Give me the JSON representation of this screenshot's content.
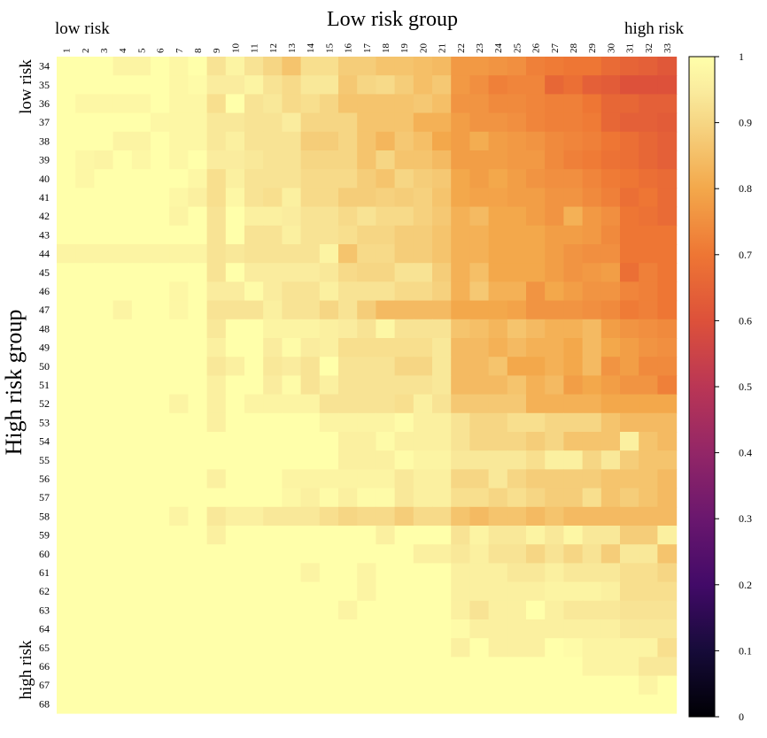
{
  "chart_data": {
    "type": "heatmap",
    "title": "Low risk group",
    "ylabel": "High risk group",
    "top_left_label": "low risk",
    "top_right_label": "high risk",
    "left_top_label": "low risk",
    "left_bottom_label": "high risk",
    "x_categories": [
      "1",
      "2",
      "3",
      "4",
      "5",
      "6",
      "7",
      "8",
      "9",
      "10",
      "11",
      "12",
      "13",
      "14",
      "15",
      "16",
      "17",
      "18",
      "19",
      "20",
      "21",
      "22",
      "23",
      "24",
      "25",
      "26",
      "27",
      "28",
      "29",
      "30",
      "31",
      "32",
      "33"
    ],
    "y_categories": [
      "34",
      "35",
      "36",
      "37",
      "38",
      "39",
      "40",
      "41",
      "42",
      "43",
      "44",
      "45",
      "46",
      "47",
      "48",
      "49",
      "50",
      "51",
      "52",
      "53",
      "54",
      "55",
      "56",
      "57",
      "58",
      "59",
      "60",
      "61",
      "62",
      "63",
      "64",
      "65",
      "66",
      "67",
      "68"
    ],
    "colorbar": {
      "min": 0,
      "max": 1,
      "ticks": [
        "0",
        "0.1",
        "0.2",
        "0.3",
        "0.4",
        "0.5",
        "0.6",
        "0.7",
        "0.8",
        "0.9",
        "1"
      ]
    },
    "colormap": "inferno",
    "values": [
      [
        1.0,
        1.0,
        1.0,
        0.97,
        0.97,
        1.0,
        0.98,
        1.0,
        0.93,
        0.97,
        0.93,
        0.9,
        0.86,
        0.92,
        0.92,
        0.88,
        0.88,
        0.86,
        0.86,
        0.85,
        0.84,
        0.77,
        0.77,
        0.76,
        0.75,
        0.72,
        0.71,
        0.7,
        0.7,
        0.67,
        0.65,
        0.64,
        0.62
      ],
      [
        1.0,
        1.0,
        1.0,
        1.0,
        1.0,
        1.0,
        0.98,
        0.99,
        0.95,
        0.95,
        0.97,
        0.93,
        0.91,
        0.94,
        0.94,
        0.87,
        0.9,
        0.91,
        0.88,
        0.85,
        0.87,
        0.77,
        0.75,
        0.72,
        0.73,
        0.73,
        0.66,
        0.68,
        0.64,
        0.63,
        0.6,
        0.6,
        0.6
      ],
      [
        1.0,
        0.98,
        0.98,
        0.98,
        0.98,
        1.0,
        0.98,
        0.98,
        0.92,
        1.0,
        0.93,
        0.94,
        0.91,
        0.92,
        0.9,
        0.86,
        0.86,
        0.86,
        0.86,
        0.87,
        0.85,
        0.76,
        0.76,
        0.74,
        0.74,
        0.73,
        0.72,
        0.72,
        0.7,
        0.66,
        0.66,
        0.64,
        0.64
      ],
      [
        1.0,
        1.0,
        1.0,
        1.0,
        1.0,
        0.98,
        0.98,
        0.98,
        0.94,
        0.94,
        0.93,
        0.93,
        0.95,
        0.9,
        0.9,
        0.9,
        0.86,
        0.86,
        0.86,
        0.82,
        0.82,
        0.78,
        0.76,
        0.76,
        0.75,
        0.73,
        0.72,
        0.72,
        0.71,
        0.66,
        0.64,
        0.64,
        0.63
      ],
      [
        1.0,
        1.0,
        1.0,
        0.97,
        0.97,
        1.0,
        0.98,
        0.98,
        0.94,
        0.96,
        0.93,
        0.93,
        0.93,
        0.88,
        0.88,
        0.9,
        0.86,
        0.83,
        0.87,
        0.85,
        0.8,
        0.78,
        0.81,
        0.78,
        0.77,
        0.76,
        0.74,
        0.73,
        0.72,
        0.7,
        0.68,
        0.66,
        0.64
      ],
      [
        1.0,
        0.98,
        0.97,
        1.0,
        0.98,
        1.0,
        0.98,
        1.0,
        0.95,
        0.95,
        0.94,
        0.93,
        0.93,
        0.9,
        0.9,
        0.9,
        0.86,
        0.9,
        0.86,
        0.86,
        0.84,
        0.78,
        0.78,
        0.78,
        0.77,
        0.77,
        0.74,
        0.72,
        0.71,
        0.69,
        0.68,
        0.66,
        0.64
      ],
      [
        1.0,
        0.98,
        1.0,
        1.0,
        1.0,
        1.0,
        1.0,
        0.98,
        0.92,
        0.96,
        0.93,
        0.93,
        0.93,
        0.91,
        0.91,
        0.91,
        0.88,
        0.86,
        0.9,
        0.88,
        0.87,
        0.8,
        0.78,
        0.8,
        0.78,
        0.76,
        0.75,
        0.75,
        0.73,
        0.71,
        0.7,
        0.68,
        0.67
      ],
      [
        1.0,
        1.0,
        1.0,
        1.0,
        1.0,
        1.0,
        0.98,
        0.96,
        0.92,
        0.98,
        0.93,
        0.92,
        0.96,
        0.91,
        0.91,
        0.88,
        0.88,
        0.89,
        0.88,
        0.89,
        0.86,
        0.8,
        0.79,
        0.79,
        0.78,
        0.78,
        0.76,
        0.76,
        0.74,
        0.72,
        0.68,
        0.7,
        0.67
      ],
      [
        1.0,
        1.0,
        1.0,
        1.0,
        1.0,
        1.0,
        0.97,
        1.0,
        0.93,
        1.0,
        0.96,
        0.96,
        0.95,
        0.93,
        0.93,
        0.91,
        0.93,
        0.91,
        0.91,
        0.89,
        0.87,
        0.82,
        0.84,
        0.8,
        0.8,
        0.78,
        0.76,
        0.82,
        0.77,
        0.75,
        0.7,
        0.69,
        0.67
      ],
      [
        1.0,
        1.0,
        1.0,
        1.0,
        1.0,
        1.0,
        1.0,
        1.0,
        0.93,
        1.0,
        0.93,
        0.93,
        0.96,
        0.93,
        0.93,
        0.92,
        0.9,
        0.9,
        0.88,
        0.88,
        0.86,
        0.82,
        0.82,
        0.8,
        0.8,
        0.8,
        0.78,
        0.78,
        0.77,
        0.74,
        0.7,
        0.7,
        0.7
      ],
      [
        0.97,
        0.97,
        0.97,
        0.97,
        0.97,
        0.97,
        0.97,
        0.97,
        0.93,
        0.94,
        0.93,
        0.93,
        0.93,
        0.93,
        0.97,
        0.86,
        0.91,
        0.91,
        0.88,
        0.88,
        0.86,
        0.82,
        0.82,
        0.8,
        0.8,
        0.8,
        0.78,
        0.76,
        0.75,
        0.75,
        0.7,
        0.7,
        0.7
      ],
      [
        1.0,
        1.0,
        1.0,
        1.0,
        1.0,
        1.0,
        1.0,
        1.0,
        0.93,
        1.0,
        0.95,
        0.95,
        0.95,
        0.95,
        0.94,
        0.91,
        0.9,
        0.9,
        0.93,
        0.93,
        0.88,
        0.82,
        0.85,
        0.8,
        0.8,
        0.8,
        0.78,
        0.76,
        0.77,
        0.78,
        0.68,
        0.72,
        0.7
      ],
      [
        1.0,
        1.0,
        1.0,
        1.0,
        1.0,
        1.0,
        0.98,
        1.0,
        0.95,
        0.95,
        0.99,
        0.95,
        0.93,
        0.93,
        0.96,
        0.93,
        0.93,
        0.93,
        0.91,
        0.91,
        0.89,
        0.82,
        0.87,
        0.82,
        0.82,
        0.76,
        0.8,
        0.78,
        0.76,
        0.76,
        0.73,
        0.72,
        0.7
      ],
      [
        1.0,
        1.0,
        1.0,
        0.97,
        1.0,
        1.0,
        0.98,
        1.0,
        0.93,
        0.93,
        0.93,
        0.96,
        0.93,
        0.93,
        0.9,
        0.93,
        0.88,
        0.84,
        0.84,
        0.84,
        0.84,
        0.8,
        0.8,
        0.8,
        0.79,
        0.76,
        0.76,
        0.76,
        0.75,
        0.74,
        0.71,
        0.72,
        0.7
      ],
      [
        1.0,
        1.0,
        1.0,
        1.0,
        1.0,
        1.0,
        1.0,
        1.0,
        0.94,
        1.0,
        1.0,
        0.97,
        0.97,
        0.97,
        0.96,
        0.95,
        0.93,
        0.98,
        0.93,
        0.93,
        0.93,
        0.86,
        0.85,
        0.83,
        0.86,
        0.84,
        0.82,
        0.82,
        0.84,
        0.78,
        0.76,
        0.75,
        0.74
      ],
      [
        1.0,
        1.0,
        1.0,
        1.0,
        1.0,
        1.0,
        1.0,
        1.0,
        0.96,
        1.0,
        1.0,
        0.95,
        0.99,
        0.95,
        0.96,
        0.92,
        0.92,
        0.92,
        0.92,
        0.92,
        0.94,
        0.84,
        0.84,
        0.82,
        0.84,
        0.82,
        0.82,
        0.8,
        0.84,
        0.8,
        0.78,
        0.76,
        0.75
      ],
      [
        1.0,
        1.0,
        1.0,
        1.0,
        1.0,
        1.0,
        1.0,
        1.0,
        0.94,
        0.96,
        1.0,
        0.94,
        0.95,
        0.93,
        1.0,
        0.93,
        0.93,
        0.93,
        0.9,
        0.9,
        0.94,
        0.84,
        0.84,
        0.86,
        0.8,
        0.8,
        0.82,
        0.8,
        0.84,
        0.76,
        0.78,
        0.74,
        0.74
      ],
      [
        1.0,
        1.0,
        1.0,
        1.0,
        1.0,
        1.0,
        1.0,
        1.0,
        0.96,
        1.0,
        1.0,
        0.95,
        0.99,
        0.93,
        0.96,
        0.93,
        0.93,
        0.93,
        0.93,
        0.93,
        0.94,
        0.84,
        0.84,
        0.84,
        0.86,
        0.82,
        0.84,
        0.78,
        0.8,
        0.78,
        0.76,
        0.76,
        0.72
      ],
      [
        1.0,
        1.0,
        1.0,
        1.0,
        1.0,
        1.0,
        0.97,
        1.0,
        0.96,
        1.0,
        0.97,
        0.97,
        0.97,
        0.97,
        0.93,
        0.93,
        0.93,
        0.93,
        0.92,
        0.96,
        0.93,
        0.87,
        0.87,
        0.87,
        0.87,
        0.82,
        0.82,
        0.82,
        0.82,
        0.8,
        0.8,
        0.8,
        0.8
      ],
      [
        1.0,
        1.0,
        1.0,
        1.0,
        1.0,
        1.0,
        1.0,
        1.0,
        0.96,
        1.0,
        1.0,
        1.0,
        1.0,
        1.0,
        0.97,
        0.97,
        0.97,
        0.97,
        0.99,
        0.96,
        0.96,
        0.93,
        0.9,
        0.9,
        0.92,
        0.92,
        0.9,
        0.9,
        0.9,
        0.86,
        0.84,
        0.84,
        0.84
      ],
      [
        1.0,
        1.0,
        1.0,
        1.0,
        1.0,
        1.0,
        1.0,
        1.0,
        1.0,
        1.0,
        1.0,
        1.0,
        1.0,
        1.0,
        1.0,
        0.96,
        0.96,
        0.99,
        0.96,
        0.96,
        0.96,
        0.93,
        0.9,
        0.9,
        0.9,
        0.88,
        0.9,
        0.86,
        0.86,
        0.86,
        0.96,
        0.86,
        0.84
      ],
      [
        1.0,
        1.0,
        1.0,
        1.0,
        1.0,
        1.0,
        1.0,
        1.0,
        1.0,
        1.0,
        1.0,
        1.0,
        1.0,
        1.0,
        1.0,
        0.96,
        0.96,
        0.96,
        0.99,
        0.97,
        0.97,
        0.94,
        0.94,
        0.94,
        0.94,
        0.92,
        0.96,
        0.96,
        0.9,
        0.94,
        0.88,
        0.86,
        0.86
      ],
      [
        1.0,
        1.0,
        1.0,
        1.0,
        1.0,
        1.0,
        1.0,
        1.0,
        0.96,
        1.0,
        1.0,
        1.0,
        0.97,
        0.97,
        0.97,
        0.97,
        0.97,
        0.97,
        0.94,
        0.96,
        0.96,
        0.9,
        0.9,
        0.94,
        0.9,
        0.88,
        0.88,
        0.88,
        0.88,
        0.86,
        0.86,
        0.86,
        0.84
      ],
      [
        1.0,
        1.0,
        1.0,
        1.0,
        1.0,
        1.0,
        1.0,
        1.0,
        1.0,
        1.0,
        1.0,
        1.0,
        0.98,
        0.96,
        0.99,
        0.96,
        0.99,
        0.99,
        0.94,
        0.96,
        0.96,
        0.92,
        0.92,
        0.9,
        0.92,
        0.9,
        0.88,
        0.88,
        0.92,
        0.86,
        0.88,
        0.86,
        0.84
      ],
      [
        1.0,
        1.0,
        1.0,
        1.0,
        1.0,
        1.0,
        0.97,
        1.0,
        0.94,
        0.96,
        0.96,
        0.94,
        0.94,
        0.94,
        0.92,
        0.9,
        0.91,
        0.91,
        0.88,
        0.91,
        0.91,
        0.86,
        0.84,
        0.86,
        0.86,
        0.84,
        0.86,
        0.84,
        0.84,
        0.84,
        0.84,
        0.84,
        0.84
      ],
      [
        1.0,
        1.0,
        1.0,
        1.0,
        1.0,
        1.0,
        1.0,
        1.0,
        0.96,
        1.0,
        1.0,
        1.0,
        1.0,
        1.0,
        1.0,
        1.0,
        1.0,
        0.96,
        1.0,
        1.0,
        1.0,
        0.93,
        0.97,
        0.94,
        0.94,
        0.97,
        0.94,
        0.98,
        0.94,
        0.94,
        0.88,
        0.88,
        0.96
      ],
      [
        1.0,
        1.0,
        1.0,
        1.0,
        1.0,
        1.0,
        1.0,
        1.0,
        1.0,
        1.0,
        1.0,
        1.0,
        1.0,
        1.0,
        1.0,
        1.0,
        1.0,
        1.0,
        1.0,
        0.96,
        0.96,
        0.94,
        0.96,
        0.93,
        0.93,
        0.9,
        0.93,
        0.9,
        0.93,
        0.88,
        0.94,
        0.94,
        0.86
      ],
      [
        1.0,
        1.0,
        1.0,
        1.0,
        1.0,
        1.0,
        1.0,
        1.0,
        1.0,
        1.0,
        1.0,
        1.0,
        1.0,
        0.97,
        1.0,
        1.0,
        0.97,
        1.0,
        1.0,
        1.0,
        1.0,
        0.96,
        0.96,
        0.96,
        0.94,
        0.94,
        0.96,
        0.94,
        0.94,
        0.94,
        0.92,
        0.92,
        0.9
      ],
      [
        1.0,
        1.0,
        1.0,
        1.0,
        1.0,
        1.0,
        1.0,
        1.0,
        1.0,
        1.0,
        1.0,
        1.0,
        1.0,
        1.0,
        1.0,
        1.0,
        0.97,
        1.0,
        1.0,
        1.0,
        1.0,
        0.96,
        0.96,
        0.96,
        0.96,
        0.96,
        0.97,
        0.97,
        0.97,
        0.96,
        0.92,
        0.92,
        0.92
      ],
      [
        1.0,
        1.0,
        1.0,
        1.0,
        1.0,
        1.0,
        1.0,
        1.0,
        1.0,
        1.0,
        1.0,
        1.0,
        1.0,
        1.0,
        1.0,
        0.97,
        1.0,
        1.0,
        1.0,
        1.0,
        1.0,
        0.96,
        0.93,
        0.96,
        0.96,
        1.0,
        0.96,
        0.94,
        0.94,
        0.94,
        0.93,
        0.93,
        0.93
      ],
      [
        1.0,
        1.0,
        1.0,
        1.0,
        1.0,
        1.0,
        1.0,
        1.0,
        1.0,
        1.0,
        1.0,
        1.0,
        1.0,
        1.0,
        1.0,
        1.0,
        1.0,
        1.0,
        1.0,
        1.0,
        1.0,
        0.99,
        0.96,
        0.96,
        0.96,
        0.96,
        0.96,
        0.96,
        0.96,
        0.96,
        0.94,
        0.94,
        0.94
      ],
      [
        1.0,
        1.0,
        1.0,
        1.0,
        1.0,
        1.0,
        1.0,
        1.0,
        1.0,
        1.0,
        1.0,
        1.0,
        1.0,
        1.0,
        1.0,
        1.0,
        1.0,
        1.0,
        1.0,
        1.0,
        1.0,
        0.96,
        1.0,
        0.96,
        0.96,
        0.96,
        1.0,
        0.99,
        0.97,
        0.97,
        0.97,
        0.97,
        0.92
      ],
      [
        1.0,
        1.0,
        1.0,
        1.0,
        1.0,
        1.0,
        1.0,
        1.0,
        1.0,
        1.0,
        1.0,
        1.0,
        1.0,
        1.0,
        1.0,
        1.0,
        1.0,
        1.0,
        1.0,
        1.0,
        1.0,
        1.0,
        1.0,
        1.0,
        1.0,
        1.0,
        1.0,
        1.0,
        0.97,
        0.97,
        0.97,
        0.94,
        0.94
      ],
      [
        1.0,
        1.0,
        1.0,
        1.0,
        1.0,
        1.0,
        1.0,
        1.0,
        1.0,
        1.0,
        1.0,
        1.0,
        1.0,
        1.0,
        1.0,
        1.0,
        1.0,
        1.0,
        1.0,
        1.0,
        1.0,
        1.0,
        1.0,
        1.0,
        1.0,
        1.0,
        1.0,
        1.0,
        1.0,
        1.0,
        1.0,
        0.97,
        1.0
      ],
      [
        1.0,
        1.0,
        1.0,
        1.0,
        1.0,
        1.0,
        1.0,
        1.0,
        1.0,
        1.0,
        1.0,
        1.0,
        1.0,
        1.0,
        1.0,
        1.0,
        1.0,
        1.0,
        1.0,
        1.0,
        1.0,
        1.0,
        1.0,
        1.0,
        1.0,
        1.0,
        1.0,
        1.0,
        1.0,
        1.0,
        1.0,
        1.0,
        1.0
      ]
    ]
  }
}
